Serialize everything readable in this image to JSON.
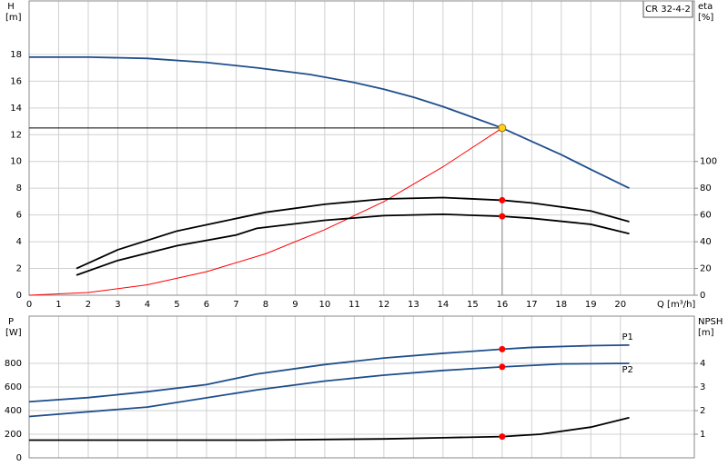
{
  "chart_data": [
    {
      "type": "line",
      "title": "CR 32-4-2",
      "ylabel": [
        "H",
        "[m]"
      ],
      "y2label": [
        "eta",
        "[%]"
      ],
      "xlabel": "Q [m³/h]",
      "xlim": [
        0,
        22.5
      ],
      "xticks": [
        0,
        1,
        2,
        3,
        4,
        5,
        6,
        7,
        8,
        9,
        10,
        11,
        12,
        13,
        14,
        15,
        16,
        17,
        18,
        19,
        20
      ],
      "ylim": [
        0,
        22
      ],
      "yticks": [
        0,
        2,
        4,
        6,
        8,
        10,
        12,
        14,
        16,
        18
      ],
      "y2lim": [
        0,
        220
      ],
      "y2ticks": [
        0,
        20,
        40,
        60,
        80,
        100
      ],
      "grid": true,
      "duty_point": {
        "x": 16,
        "y": 12.5,
        "color": "#ffd21f"
      },
      "series": [
        {
          "color": "#1f4e8c",
          "x": [
            0,
            2,
            4,
            6,
            7.7,
            9.5,
            11,
            12,
            13,
            14,
            15,
            16,
            17,
            18,
            19,
            20.3
          ],
          "values": [
            17.8,
            17.8,
            17.7,
            17.4,
            17.0,
            16.5,
            15.9,
            15.4,
            14.8,
            14.1,
            13.3,
            12.5,
            11.5,
            10.5,
            9.4,
            8.0
          ]
        },
        {
          "color": "#ff0000",
          "x": [
            0,
            2,
            4,
            6,
            8,
            10,
            12,
            14,
            16
          ],
          "values": [
            0,
            0.2,
            0.78,
            1.76,
            3.1,
            4.9,
            7.0,
            9.6,
            12.5
          ]
        },
        {
          "color": "#000000",
          "axis": "y2",
          "marker_color": "#ff0000",
          "x": [
            1.6,
            3,
            5,
            6.5,
            8,
            10,
            12,
            14,
            16,
            17,
            19,
            20.3
          ],
          "values": [
            20,
            34,
            48,
            55,
            62,
            68,
            72,
            73,
            71,
            69,
            63,
            55
          ]
        },
        {
          "color": "#000000",
          "axis": "y2",
          "marker_color": "#ff0000",
          "x": [
            1.6,
            3,
            5,
            7,
            7.7,
            10,
            12,
            14,
            16,
            17,
            19,
            20.3
          ],
          "values": [
            15,
            26,
            37,
            45,
            50,
            56,
            59.5,
            60.5,
            59,
            57.5,
            53,
            46
          ]
        }
      ]
    },
    {
      "type": "line",
      "ylabel": [
        "P",
        "[W]"
      ],
      "y2label": [
        "NPSH",
        "[m]"
      ],
      "xlim": [
        0,
        22.5
      ],
      "xticks": [
        0,
        1,
        2,
        3,
        4,
        5,
        6,
        7,
        8,
        9,
        10,
        11,
        12,
        13,
        14,
        15,
        16,
        17,
        18,
        19,
        20
      ],
      "ylim": [
        0,
        1200
      ],
      "yticks": [
        0,
        200,
        400,
        600,
        800
      ],
      "y2lim": [
        0,
        6
      ],
      "y2ticks": [
        1,
        2,
        3,
        4
      ],
      "grid": true,
      "series": [
        {
          "name": "P1",
          "color": "#1f4e8c",
          "marker_color": "#ff0000",
          "x": [
            0,
            2,
            4,
            6,
            7.7,
            10,
            12,
            14,
            16,
            17,
            19,
            20.3
          ],
          "values": [
            475,
            510,
            560,
            620,
            710,
            790,
            845,
            885,
            920,
            935,
            950,
            955
          ]
        },
        {
          "name": "P2",
          "color": "#1f4e8c",
          "marker_color": "#ff0000",
          "x": [
            0,
            4,
            7.7,
            10,
            12,
            14,
            16,
            18,
            20.3
          ],
          "values": [
            350,
            430,
            575,
            650,
            700,
            740,
            770,
            795,
            800
          ]
        },
        {
          "color": "#000000",
          "axis": "y2",
          "marker_color": "#ff0000",
          "x": [
            0,
            7.7,
            12,
            14,
            16,
            17.3,
            19,
            20.3
          ],
          "values": [
            0.75,
            0.75,
            0.8,
            0.85,
            0.9,
            1.0,
            1.3,
            1.7
          ]
        }
      ]
    }
  ]
}
